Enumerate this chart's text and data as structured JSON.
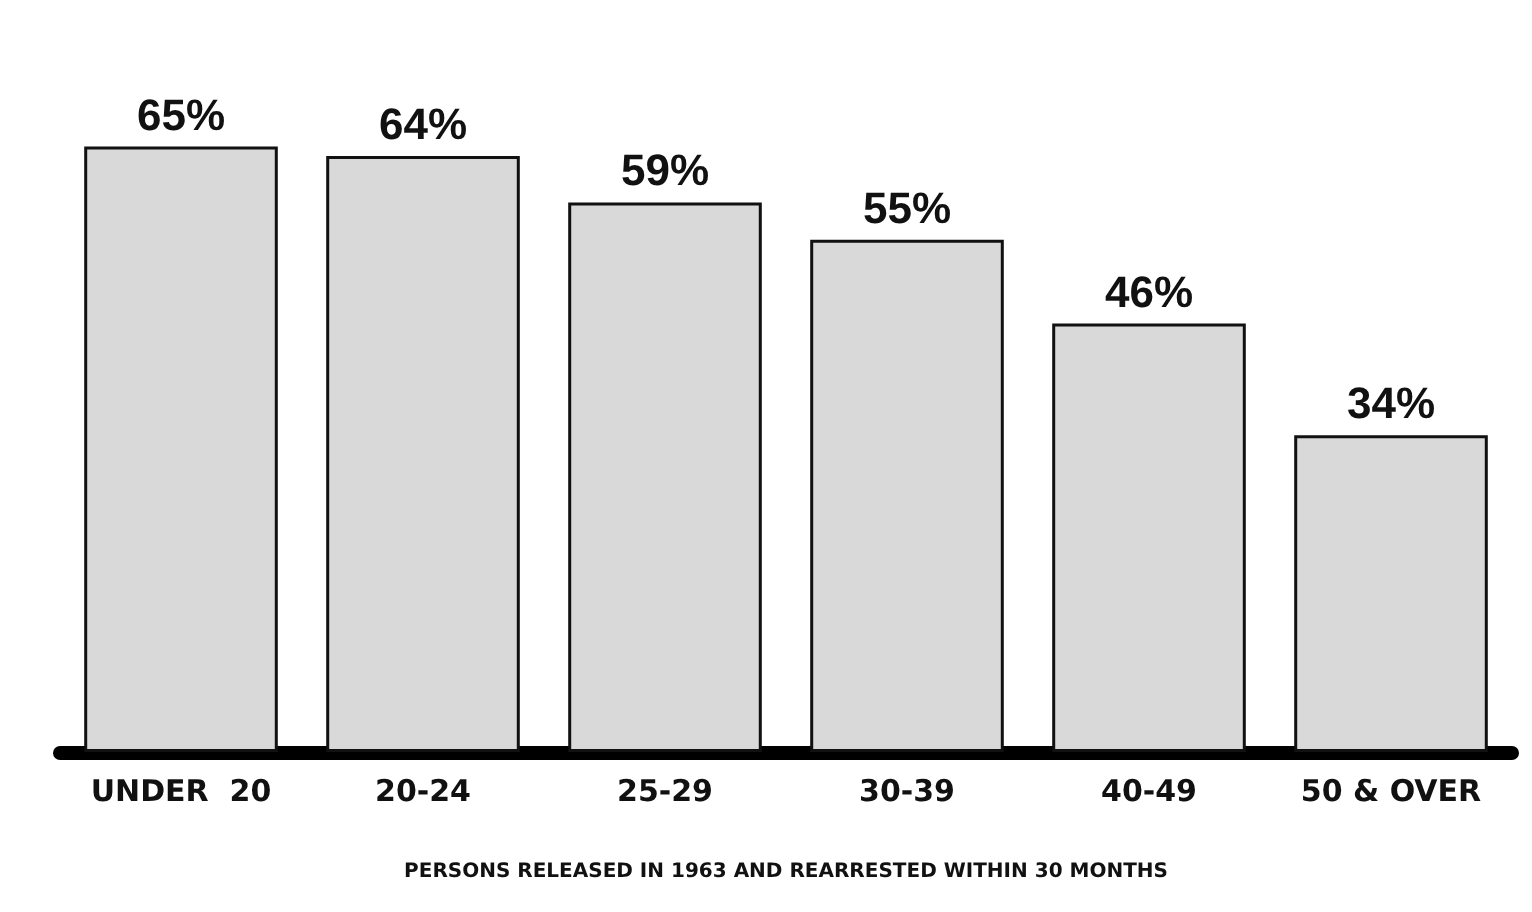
{
  "chart_data": {
    "type": "bar",
    "xlabel": "PERSONS RELEASED IN 1963 AND REARRESTED WITHIN 30 MONTHS",
    "categories": [
      "UNDER  20",
      "20-24",
      "25-29",
      "30-39",
      "40-49",
      "50 & OVER"
    ],
    "values": [
      65,
      64,
      59,
      55,
      46,
      34
    ],
    "value_labels": [
      "65%",
      "64%",
      "59%",
      "55%",
      "46%",
      "34%"
    ],
    "color": "#d9d9d9"
  }
}
